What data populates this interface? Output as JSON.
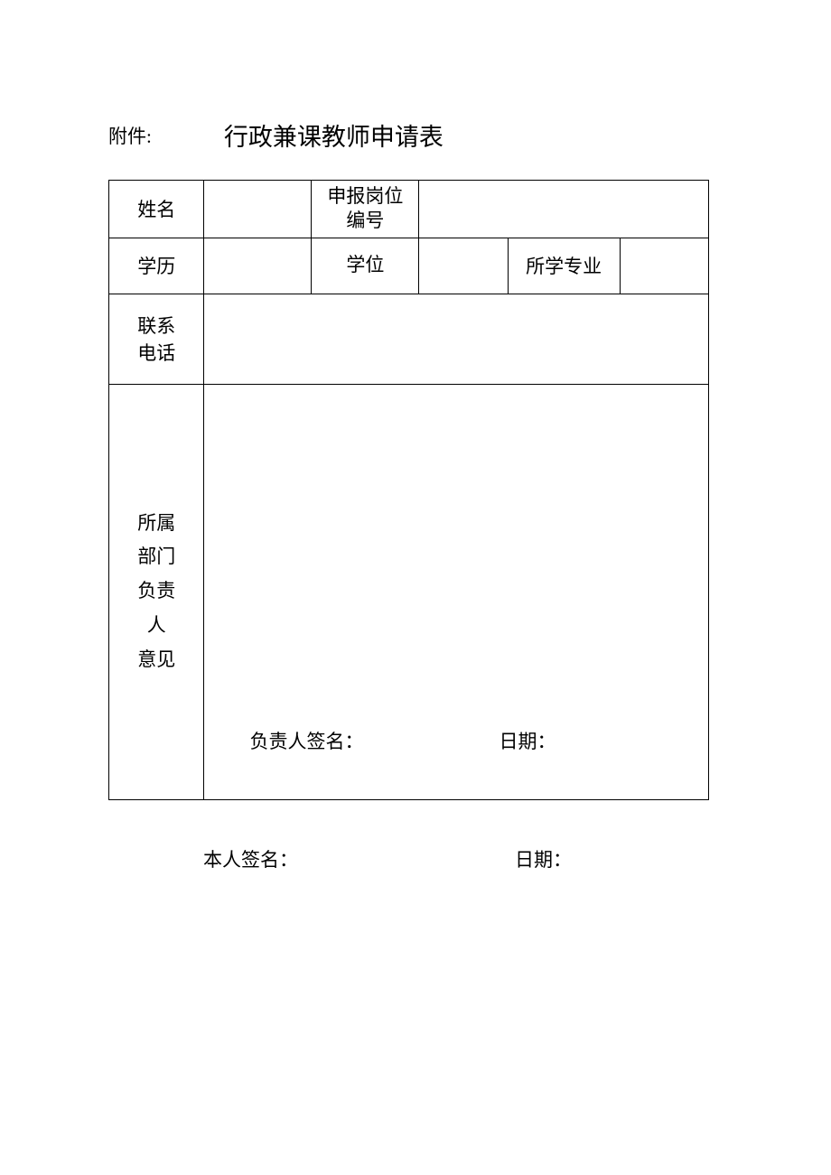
{
  "header": {
    "attachment": "附件:",
    "title": "行政兼课教师申请表"
  },
  "labels": {
    "name": "姓名",
    "position_no": "申报岗位编号",
    "education": "学历",
    "degree": "学位",
    "major": "所学专业",
    "phone": "联系电话",
    "dept_opinion": "所属部门负责人意见",
    "supervisor_sig": "负责人签名：",
    "date_inner": "日期：",
    "self_sig": "本人签名：",
    "date_outer": "日期："
  },
  "values": {
    "name": "",
    "position_no": "",
    "education": "",
    "degree": "",
    "major": "",
    "phone": "",
    "dept_opinion": ""
  },
  "styling": {
    "page_bg": "#ffffff",
    "text_color": "#000000",
    "border_color": "#000000",
    "title_fontsize": 27,
    "body_fontsize": 21
  }
}
